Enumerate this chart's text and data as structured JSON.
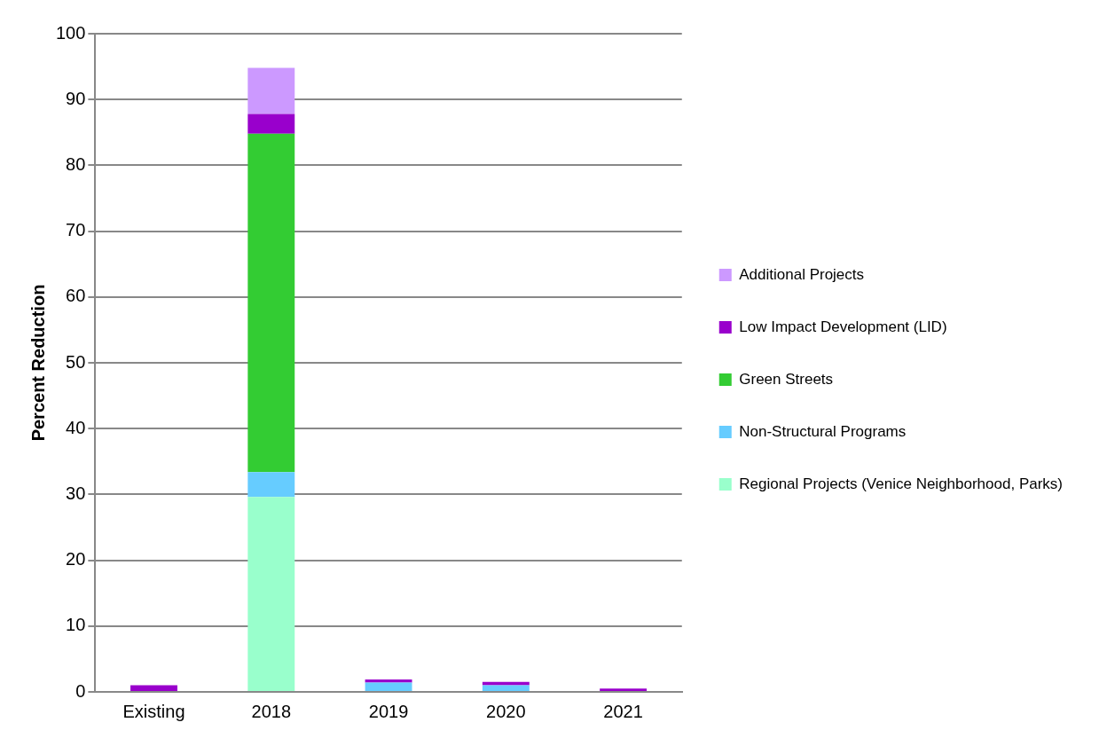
{
  "chart_data": {
    "type": "bar",
    "stacked": true,
    "ylabel": "Percent Reduction",
    "categories": [
      "Existing",
      "2018",
      "2019",
      "2020",
      "2021"
    ],
    "ylim": [
      0,
      100
    ],
    "yticks": [
      0,
      10,
      20,
      30,
      40,
      50,
      60,
      70,
      80,
      90,
      100
    ],
    "grid": "y",
    "legend": "right",
    "series": [
      {
        "name": "Regional Projects (Venice Neighborhood, Parks)",
        "color": "#99ffcc",
        "values": [
          0,
          29.6,
          0,
          0,
          0
        ]
      },
      {
        "name": "Non-Structural Programs",
        "color": "#66ccff",
        "values": [
          0,
          3.8,
          1.4,
          1.0,
          0
        ]
      },
      {
        "name": "Green Streets",
        "color": "#33cc33",
        "values": [
          0,
          51.4,
          0,
          0,
          0
        ]
      },
      {
        "name": "Low Impact Development (LID)",
        "color": "#9900cc",
        "values": [
          1.0,
          3.0,
          0.5,
          0.5,
          0.5
        ]
      },
      {
        "name": "Additional Projects",
        "color": "#cc99ff",
        "values": [
          0,
          7.0,
          0,
          0,
          0
        ]
      }
    ]
  }
}
